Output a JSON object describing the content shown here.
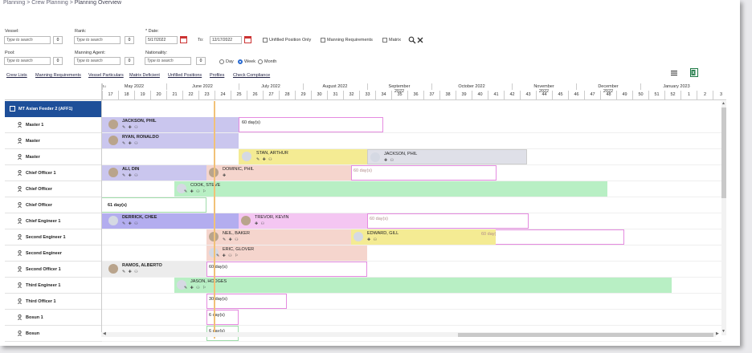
{
  "breadcrumb": [
    "Planning",
    "Crew Planning",
    "Planning Overview"
  ],
  "filters": {
    "vessel": {
      "label": "Vessel:",
      "placeholder": "Type to search",
      "count": "0"
    },
    "rank": {
      "label": "Rank:",
      "placeholder": "Type to search",
      "count": "0"
    },
    "date": {
      "label": "* Date:",
      "from": "5/17/2022",
      "to_label": "To:",
      "to": "12/17/2022"
    },
    "pool": {
      "label": "Pool:",
      "placeholder": "Type to search",
      "count": "0"
    },
    "manning_agent": {
      "label": "Manning Agent:",
      "placeholder": "Type to search",
      "count": "0"
    },
    "nationality": {
      "label": "Nationality:",
      "placeholder": "Type to search",
      "count": "0"
    },
    "checks": [
      "Unfilled Position Only",
      "Manning Requirements",
      "Matrix"
    ],
    "view_modes": [
      "Day",
      "Week",
      "Month"
    ],
    "selected_view": "Week"
  },
  "links": [
    "Crew Lists",
    "Manning Requirements",
    "Vessel Particulars",
    "Matrix Deficient",
    "Unfilled Positions",
    "Profiles",
    "Check Compliance"
  ],
  "timeline": {
    "prev_label": "Ju ",
    "months": [
      "May 2022",
      "June 2022",
      "July 2022",
      "August 2022",
      "September 2022",
      "October 2022",
      "November 2022",
      "December 2022",
      "January 2023"
    ],
    "weeks": [
      "17",
      "18",
      "19",
      "20",
      "21",
      "22",
      "23",
      "24",
      "25",
      "26",
      "27",
      "28",
      "29",
      "30",
      "31",
      "32",
      "33",
      "34",
      "35",
      "36",
      "37",
      "38",
      "39",
      "40",
      "41",
      "42",
      "43",
      "44",
      "45",
      "46",
      "47",
      "48",
      "49",
      "50",
      "51",
      "52",
      "1",
      "2",
      "3"
    ]
  },
  "vessel_name": "MT Asian Feeder 2 (AFF1)",
  "ranks": [
    "Master 1",
    "Master",
    "Master",
    "Chief Officer 1",
    "Chief Officer",
    "Chief Officer",
    "Chief Engineer 1",
    "Second Engineer 1",
    "Second Engineer",
    "Second Officer 1",
    "Third Engineer 1",
    "Third Officer 1",
    "Bosun 1",
    "Bosun"
  ],
  "assignments": [
    {
      "name": "JACKSON, PHIL",
      "icons": "✎ ✚ ⚇",
      "color": "#cac6ee"
    },
    {
      "name": "RYAN, RONALDO",
      "icons": "✎ ✚ ⚇",
      "color": "#cac6ee"
    },
    {
      "name": "STAN, ARTHUR",
      "icons": "✎ ✚ ⚇",
      "color": "#f4eb93"
    },
    {
      "name": "JACKSON, PHIL",
      "icons": "✚ ⚇",
      "color": "#dfe0e8"
    },
    {
      "name": "ALI, DIN",
      "icons": "✎ ✚ ⚇",
      "color": "#cac6ee"
    },
    {
      "name": "DOMINIC, PHIL",
      "icons": "✚",
      "color": "#f5d5cd"
    },
    {
      "name": "COOK, STEVE",
      "icons": "✎ ✚ ⚇ ⚐",
      "color": "#b8efc4"
    },
    {
      "name": "DERRICK, CHEE",
      "icons": "✎ ✚ ⚇",
      "color": "#b3adef"
    },
    {
      "name": "TREVOR, KEVIN",
      "icons": "✚ ⚇",
      "color": "#f4c6f2"
    },
    {
      "name": "NEIL, BAKER",
      "icons": "✎ ✚ ⚇",
      "color": "#f5d5cd"
    },
    {
      "name": "EDWARD, GILL",
      "icons": "✚ ⚇",
      "color": "#f4eb93"
    },
    {
      "name": "ERIC, GLOVER",
      "icons": "✎ ✚ ⚇ ⚐",
      "color": "#f5d5cd"
    },
    {
      "name": "RAMOS, ALBERTO",
      "icons": "✎ ✚ ⚇",
      "color": "#ececec"
    },
    {
      "name": "JASON, HODGES",
      "icons": "✎ ✚ ⚇ ⚐",
      "color": "#b8efc4"
    }
  ],
  "duration_labels": [
    "60 day(s)",
    "60 day(s)",
    "61 day(s)",
    "60 day(s)",
    "60 day(s)",
    "60 day(s)",
    "30 day(s)",
    "6 day(s)",
    "6 day(s)"
  ]
}
